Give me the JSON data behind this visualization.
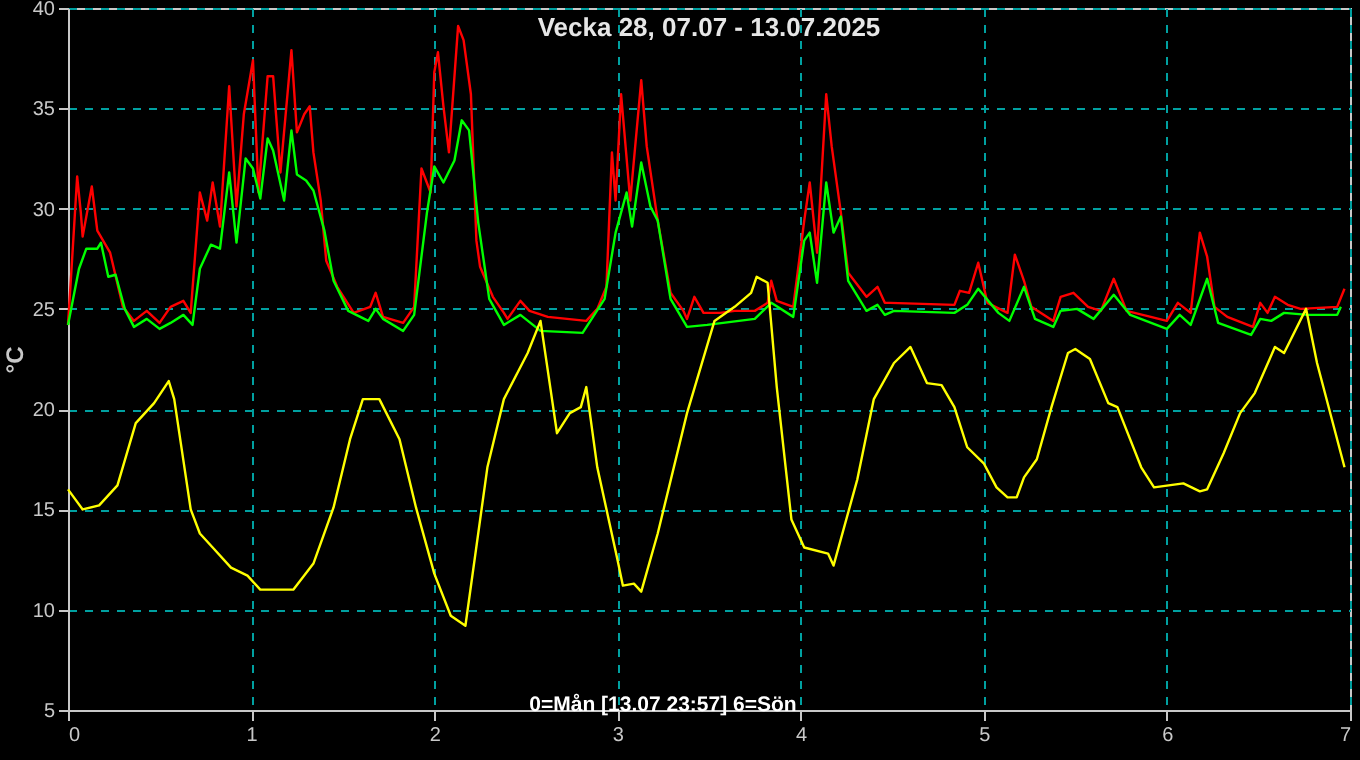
{
  "chart_data": {
    "type": "line",
    "title": "Vecka 28, 07.07 - 13.07.2025",
    "xlabel": "0=Mån [13.07 23:57] 6=Sön",
    "ylabel": "°C",
    "xlim": [
      0,
      7
    ],
    "xticks": [
      0,
      1,
      2,
      3,
      4,
      5,
      6,
      7
    ],
    "ylim": [
      5,
      40
    ],
    "yticks": [
      5,
      10,
      15,
      20,
      25,
      30,
      35,
      40
    ],
    "grid": true,
    "legend": false,
    "marker": "none",
    "line_style": "solid",
    "series": [
      {
        "color": "#ff0000",
        "x": [
          0,
          0.02,
          0.05,
          0.07,
          0.08,
          0.13,
          0.16,
          0.23,
          0.3,
          0.36,
          0.43,
          0.5,
          0.56,
          0.63,
          0.67,
          0.72,
          0.76,
          0.79,
          0.83,
          0.88,
          0.92,
          0.96,
          1.01,
          1.04,
          1.09,
          1.12,
          1.16,
          1.22,
          1.25,
          1.29,
          1.32,
          1.34,
          1.38,
          1.41,
          1.47,
          1.56,
          1.65,
          1.68,
          1.72,
          1.83,
          1.89,
          1.93,
          1.98,
          2.0,
          2.02,
          2.05,
          2.08,
          2.13,
          2.16,
          2.2,
          2.23,
          2.25,
          2.32,
          2.38,
          2.4,
          2.47,
          2.52,
          2.62,
          2.83,
          2.89,
          2.94,
          2.97,
          2.99,
          3.02,
          3.07,
          3.13,
          3.16,
          3.22,
          3.29,
          3.36,
          3.38,
          3.42,
          3.47,
          3.56,
          3.64,
          3.75,
          3.82,
          3.84,
          3.87,
          3.96,
          4.02,
          4.05,
          4.09,
          4.14,
          4.17,
          4.22,
          4.26,
          4.36,
          4.42,
          4.46,
          4.49,
          4.84,
          4.87,
          4.92,
          4.97,
          5.02,
          5.13,
          5.17,
          5.22,
          5.26,
          5.38,
          5.42,
          5.49,
          5.57,
          5.64,
          5.71,
          5.78,
          6.0,
          6.06,
          6.13,
          6.18,
          6.22,
          6.26,
          6.33,
          6.47,
          6.51,
          6.55,
          6.59,
          6.66,
          6.73,
          6.93,
          6.97
        ],
        "values": [
          24.2,
          27.1,
          31.6,
          29.8,
          28.6,
          31.1,
          28.9,
          27.8,
          25.1,
          24.4,
          24.9,
          24.3,
          25.1,
          25.4,
          24.8,
          30.8,
          29.4,
          31.3,
          29.1,
          36.1,
          30.1,
          34.7,
          37.4,
          30.8,
          36.6,
          36.6,
          31.8,
          37.9,
          33.8,
          34.7,
          35.1,
          32.8,
          30.4,
          27.4,
          26.1,
          24.8,
          25.1,
          25.8,
          24.6,
          24.3,
          25.1,
          32.0,
          30.8,
          36.8,
          37.8,
          35.1,
          32.8,
          39.1,
          38.4,
          35.7,
          28.4,
          27.1,
          25.6,
          24.8,
          24.5,
          25.4,
          24.9,
          24.6,
          24.4,
          25.0,
          26.1,
          32.8,
          30.4,
          35.7,
          30.4,
          36.4,
          33.1,
          29.4,
          25.8,
          24.9,
          24.5,
          25.6,
          24.8,
          24.8,
          24.9,
          24.9,
          25.3,
          26.4,
          25.4,
          25.1,
          29.4,
          31.3,
          27.8,
          35.7,
          33.1,
          29.8,
          26.8,
          25.6,
          26.1,
          25.3,
          25.3,
          25.2,
          25.9,
          25.8,
          27.3,
          25.3,
          24.8,
          27.7,
          26.4,
          25.1,
          24.4,
          25.6,
          25.8,
          25.1,
          24.9,
          26.5,
          24.9,
          24.4,
          25.3,
          24.8,
          28.8,
          27.6,
          25.1,
          24.6,
          24.1,
          25.3,
          24.8,
          25.6,
          25.2,
          25.0,
          25.1,
          26.0
        ]
      },
      {
        "color": "#00ff00",
        "x": [
          0,
          0.06,
          0.1,
          0.16,
          0.18,
          0.22,
          0.26,
          0.31,
          0.36,
          0.43,
          0.5,
          0.56,
          0.63,
          0.68,
          0.72,
          0.78,
          0.83,
          0.88,
          0.92,
          0.97,
          1.01,
          1.05,
          1.09,
          1.12,
          1.18,
          1.22,
          1.25,
          1.3,
          1.34,
          1.4,
          1.45,
          1.53,
          1.64,
          1.68,
          1.72,
          1.83,
          1.89,
          1.96,
          2.0,
          2.05,
          2.11,
          2.15,
          2.19,
          2.24,
          2.3,
          2.38,
          2.47,
          2.58,
          2.81,
          2.93,
          2.99,
          3.05,
          3.08,
          3.13,
          3.18,
          3.22,
          3.29,
          3.38,
          3.49,
          3.75,
          3.84,
          3.96,
          4.02,
          4.05,
          4.09,
          4.14,
          4.18,
          4.22,
          4.26,
          4.36,
          4.42,
          4.46,
          4.51,
          4.84,
          4.91,
          4.97,
          5.08,
          5.14,
          5.22,
          5.28,
          5.38,
          5.42,
          5.51,
          5.6,
          5.71,
          5.8,
          6.0,
          6.07,
          6.13,
          6.22,
          6.28,
          6.46,
          6.51,
          6.57,
          6.64,
          6.77,
          6.93,
          6.95
        ],
        "values": [
          24.2,
          27.0,
          28.0,
          28.0,
          28.3,
          26.6,
          26.7,
          25.0,
          24.1,
          24.5,
          24.0,
          24.3,
          24.7,
          24.2,
          27.0,
          28.2,
          28.0,
          31.8,
          28.3,
          32.5,
          32.0,
          30.5,
          33.5,
          32.9,
          30.4,
          33.9,
          31.7,
          31.4,
          30.9,
          28.9,
          26.4,
          24.9,
          24.4,
          25.0,
          24.5,
          23.9,
          24.7,
          29.8,
          32.1,
          31.3,
          32.4,
          34.4,
          33.9,
          29.3,
          25.5,
          24.2,
          24.7,
          23.9,
          23.8,
          25.5,
          28.8,
          30.8,
          29.1,
          32.3,
          30.1,
          29.4,
          25.5,
          24.1,
          24.2,
          24.5,
          25.3,
          24.6,
          28.4,
          28.8,
          26.3,
          31.3,
          28.8,
          29.6,
          26.4,
          24.9,
          25.2,
          24.7,
          24.9,
          24.8,
          25.2,
          26.0,
          24.8,
          24.4,
          26.1,
          24.5,
          24.1,
          24.9,
          25.0,
          24.5,
          25.7,
          24.7,
          24.0,
          24.7,
          24.2,
          26.5,
          24.3,
          23.7,
          24.5,
          24.4,
          24.8,
          24.7,
          24.7,
          25.1
        ]
      },
      {
        "color": "#ffff00",
        "x": [
          0,
          0.08,
          0.17,
          0.27,
          0.37,
          0.47,
          0.55,
          0.58,
          0.67,
          0.72,
          0.79,
          0.89,
          0.98,
          1.05,
          1.23,
          1.34,
          1.45,
          1.54,
          1.61,
          1.7,
          1.81,
          1.9,
          2.0,
          2.09,
          2.17,
          2.29,
          2.38,
          2.51,
          2.58,
          2.67,
          2.74,
          2.8,
          2.83,
          2.89,
          3.0,
          3.03,
          3.09,
          3.13,
          3.22,
          3.38,
          3.53,
          3.64,
          3.73,
          3.76,
          3.82,
          3.87,
          3.95,
          4.02,
          4.15,
          4.18,
          4.31,
          4.4,
          4.51,
          4.6,
          4.69,
          4.77,
          4.84,
          4.91,
          5.0,
          5.07,
          5.13,
          5.18,
          5.22,
          5.29,
          5.37,
          5.46,
          5.5,
          5.58,
          5.68,
          5.73,
          5.86,
          5.93,
          6.09,
          6.18,
          6.22,
          6.31,
          6.4,
          6.48,
          6.59,
          6.64,
          6.76,
          6.82,
          6.97
        ],
        "values": [
          16.0,
          15.0,
          15.2,
          16.2,
          19.3,
          20.3,
          21.4,
          20.5,
          15.0,
          13.8,
          13.1,
          12.1,
          11.7,
          11.0,
          11.0,
          12.3,
          15.1,
          18.5,
          20.5,
          20.5,
          18.5,
          15.1,
          11.8,
          9.7,
          9.2,
          17.1,
          20.5,
          22.8,
          24.4,
          18.8,
          19.8,
          20.1,
          21.1,
          17.1,
          12.5,
          11.2,
          11.3,
          10.9,
          13.8,
          19.8,
          24.4,
          25.1,
          25.8,
          26.6,
          26.3,
          21.1,
          14.5,
          13.1,
          12.8,
          12.2,
          16.5,
          20.5,
          22.3,
          23.1,
          21.3,
          21.2,
          20.1,
          18.1,
          17.3,
          16.1,
          15.6,
          15.6,
          16.6,
          17.5,
          20.1,
          22.8,
          23.0,
          22.5,
          20.3,
          20.1,
          17.1,
          16.1,
          16.3,
          15.9,
          16.0,
          17.8,
          19.8,
          20.8,
          23.1,
          22.8,
          25.0,
          22.3,
          17.1
        ]
      }
    ]
  }
}
